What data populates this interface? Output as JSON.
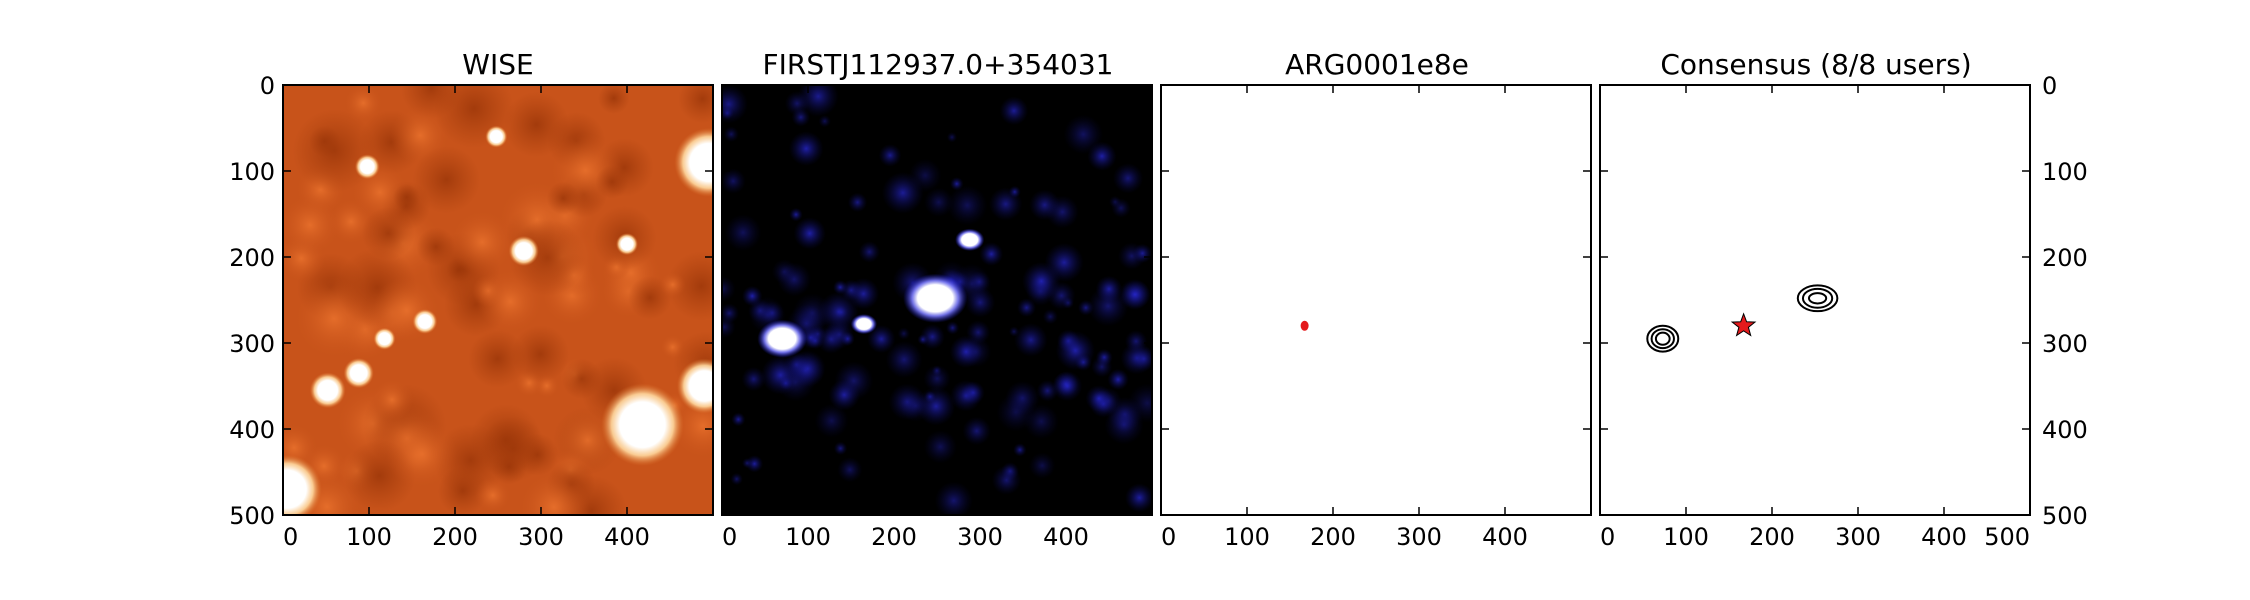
{
  "chart_data": [
    {
      "type": "heatmap",
      "title": "WISE",
      "xlabel": "",
      "ylabel": "",
      "xlim": [
        0,
        500
      ],
      "ylim": [
        500,
        0
      ],
      "x_ticks": [
        0,
        100,
        200,
        300,
        400
      ],
      "y_ticks": [
        0,
        100,
        200,
        300,
        400,
        500
      ],
      "colormap": "orange-heat",
      "colors": {
        "background": "#c8531a",
        "dark": "#a43c0c",
        "bright": "#ffffff"
      },
      "bright_sources": [
        {
          "x": 495,
          "y": 90,
          "r": 25
        },
        {
          "x": 490,
          "y": 350,
          "r": 20
        },
        {
          "x": 418,
          "y": 395,
          "r": 30
        },
        {
          "x": 5,
          "y": 470,
          "r": 25
        },
        {
          "x": 52,
          "y": 355,
          "r": 13
        },
        {
          "x": 88,
          "y": 335,
          "r": 11
        },
        {
          "x": 280,
          "y": 193,
          "r": 11
        },
        {
          "x": 165,
          "y": 275,
          "r": 9
        },
        {
          "x": 118,
          "y": 295,
          "r": 8
        },
        {
          "x": 98,
          "y": 95,
          "r": 9
        },
        {
          "x": 248,
          "y": 60,
          "r": 8
        },
        {
          "x": 400,
          "y": 185,
          "r": 8
        }
      ]
    },
    {
      "type": "heatmap",
      "title": "FIRSTJ112937.0+354031",
      "xlabel": "",
      "ylabel": "",
      "xlim": [
        0,
        500
      ],
      "ylim": [
        500,
        0
      ],
      "x_ticks": [
        0,
        100,
        200,
        300,
        400
      ],
      "y_ticks": [],
      "colormap": "blue-heat",
      "colors": {
        "background": "#000000",
        "mid": "#1a1ad0",
        "bright": "#ffffff"
      },
      "bright_sources": [
        {
          "x": 70,
          "y": 295,
          "r": 17
        },
        {
          "x": 165,
          "y": 278,
          "r": 9
        },
        {
          "x": 248,
          "y": 248,
          "r": 22
        },
        {
          "x": 288,
          "y": 180,
          "r": 10
        }
      ]
    },
    {
      "type": "scatter",
      "title": "ARG0001e8e",
      "xlabel": "",
      "ylabel": "",
      "xlim": [
        0,
        500
      ],
      "ylim": [
        500,
        0
      ],
      "x_ticks": [
        0,
        100,
        200,
        300,
        400
      ],
      "y_ticks": [],
      "series": [
        {
          "values": [
            {
              "x": 167,
              "y": 280
            }
          ],
          "color": "#e41a1c",
          "marker": "dot"
        }
      ]
    },
    {
      "type": "scatter",
      "title": "Consensus (8/8 users)",
      "xlabel": "",
      "ylabel": "",
      "xlim": [
        0,
        500
      ],
      "ylim": [
        500,
        0
      ],
      "x_ticks": [
        0,
        100,
        200,
        300,
        400,
        500
      ],
      "y_ticks": [
        0,
        100,
        200,
        300,
        400,
        500
      ],
      "y_tick_side": "right",
      "contours": [
        {
          "x": 73,
          "y": 295,
          "levels": [
            [
              18,
              15
            ],
            [
              13,
              11
            ],
            [
              8,
              7
            ]
          ]
        },
        {
          "x": 253,
          "y": 248,
          "levels": [
            [
              23,
              15
            ],
            [
              17,
              11
            ],
            [
              10,
              6
            ]
          ]
        }
      ],
      "series": [
        {
          "values": [
            {
              "x": 167,
              "y": 280
            }
          ],
          "color": "#e41a1c",
          "marker": "star"
        }
      ]
    }
  ]
}
